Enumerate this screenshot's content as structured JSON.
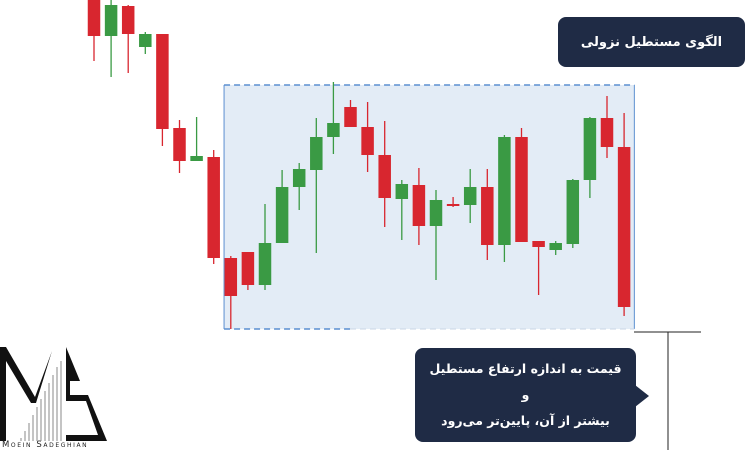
{
  "title": "الگوی مستطیل نزولی",
  "callout": {
    "line1": "قیمت به اندازه ارتفاع مستطیل و",
    "line2": "بیشتر از آن، پایین‌تر می‌رود"
  },
  "logo": {
    "text": "Moein Sadeghian"
  },
  "colors": {
    "bullish": "#3a9a44",
    "bearish": "#d8262f",
    "rectangle_fill": "#e3ecf6",
    "rectangle_border": "#5b8fd0",
    "label_bg": "#1f2b45"
  },
  "chart_data": {
    "type": "candlestick",
    "title": "الگوی مستطیل نزولی",
    "xlabel": "",
    "ylabel": "",
    "grid": false,
    "candles": [
      {
        "o": 455,
        "h": 460,
        "l": 389,
        "c": 414
      },
      {
        "o": 414,
        "h": 450,
        "l": 373,
        "c": 445
      },
      {
        "o": 444,
        "h": 445,
        "l": 377,
        "c": 416
      },
      {
        "o": 403,
        "h": 418,
        "l": 396,
        "c": 416
      },
      {
        "o": 416,
        "h": 416,
        "l": 304,
        "c": 321
      },
      {
        "o": 322,
        "h": 330,
        "l": 277,
        "c": 289
      },
      {
        "o": 289,
        "h": 333,
        "l": 289,
        "c": 294
      },
      {
        "o": 293,
        "h": 300,
        "l": 186,
        "c": 192
      },
      {
        "o": 192,
        "h": 194,
        "l": 121,
        "c": 154
      },
      {
        "o": 198,
        "h": 198,
        "l": 160,
        "c": 165
      },
      {
        "o": 165,
        "h": 246,
        "l": 160,
        "c": 207
      },
      {
        "o": 207,
        "h": 280,
        "l": 207,
        "c": 263
      },
      {
        "o": 263,
        "h": 287,
        "l": 240,
        "c": 281
      },
      {
        "o": 280,
        "h": 332,
        "l": 197,
        "c": 313
      },
      {
        "o": 313,
        "h": 368,
        "l": 296,
        "c": 327
      },
      {
        "o": 343,
        "h": 350,
        "l": 323,
        "c": 323
      },
      {
        "o": 323,
        "h": 348,
        "l": 278,
        "c": 295
      },
      {
        "o": 295,
        "h": 329,
        "l": 223,
        "c": 252
      },
      {
        "o": 251,
        "h": 270,
        "l": 210,
        "c": 266
      },
      {
        "o": 265,
        "h": 282,
        "l": 205,
        "c": 224
      },
      {
        "o": 224,
        "h": 260,
        "l": 170,
        "c": 250
      },
      {
        "o": 246,
        "h": 253,
        "l": 243,
        "c": 245
      },
      {
        "o": 245,
        "h": 281,
        "l": 227,
        "c": 263
      },
      {
        "o": 263,
        "h": 281,
        "l": 190,
        "c": 205
      },
      {
        "o": 205,
        "h": 315,
        "l": 188,
        "c": 313
      },
      {
        "o": 313,
        "h": 322,
        "l": 208,
        "c": 208
      },
      {
        "o": 209,
        "h": 209,
        "l": 155,
        "c": 203
      },
      {
        "o": 200,
        "h": 209,
        "l": 195,
        "c": 207
      },
      {
        "o": 206,
        "h": 271,
        "l": 202,
        "c": 270
      },
      {
        "o": 270,
        "h": 333,
        "l": 252,
        "c": 332
      },
      {
        "o": 332,
        "h": 354,
        "l": 292,
        "c": 303
      },
      {
        "o": 303,
        "h": 337,
        "l": 134,
        "c": 143
      }
    ],
    "rectangle": {
      "top": 365,
      "bottom": 121,
      "from_candle": 8,
      "to_candle": 31
    },
    "measure": {
      "level": 118
    }
  }
}
